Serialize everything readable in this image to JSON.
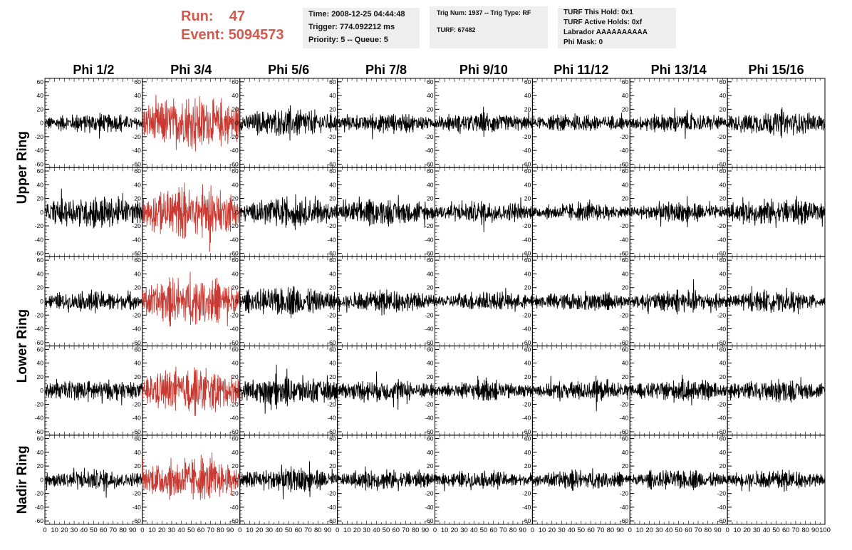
{
  "header": {
    "run_label": "Run:",
    "run_value": "47",
    "event_label": "Event:",
    "event_value": "5094573",
    "time": "Time: 2008-12-25 04:44:48",
    "trigger": "Trigger: 774.092212 ms",
    "priority": "Priority: 5 -- Queue: 5",
    "trig_num": "Trig Num: 1937 -- Trig Type: RF",
    "turf": "TURF: 67482",
    "turf_this_hold": "TURF This Hold: 0x1",
    "turf_active_holds": "TURF Active Holds: 0xf",
    "labrador": "Labrador AAAAAAAAAA",
    "phi_mask": "Phi Mask: 0"
  },
  "chart_data": {
    "type": "line",
    "title": "",
    "columns": [
      "Phi 1/2",
      "Phi 3/4",
      "Phi 5/6",
      "Phi 7/8",
      "Phi 9/10",
      "Phi 11/12",
      "Phi 13/14",
      "Phi 15/16"
    ],
    "rings": [
      "Upper Ring",
      "Lower Ring",
      "Nadir Ring"
    ],
    "rows_per_ring": [
      2,
      2,
      1
    ],
    "xlim": [
      0,
      100
    ],
    "ylim": [
      -65,
      65
    ],
    "x_tick_labels": [
      "0",
      "10",
      "20",
      "30",
      "40",
      "50",
      "60",
      "70",
      "80",
      "90",
      "100"
    ],
    "y_tick_labels": [
      "-60",
      "-40",
      "-20",
      "0",
      "20",
      "40",
      "60"
    ],
    "highlight_column": "Phi 3/4",
    "highlight_color": "#c83a32",
    "trace_color": "#000000",
    "samples_per_trace": 260,
    "panel_amplitudes": [
      [
        12,
        34,
        18,
        12,
        12,
        11,
        12,
        16
      ],
      [
        20,
        32,
        18,
        16,
        14,
        11,
        12,
        16
      ],
      [
        13,
        30,
        18,
        14,
        12,
        12,
        14,
        13
      ],
      [
        14,
        28,
        18,
        14,
        12,
        13,
        13,
        14
      ],
      [
        13,
        26,
        15,
        12,
        11,
        12,
        12,
        12
      ]
    ]
  }
}
